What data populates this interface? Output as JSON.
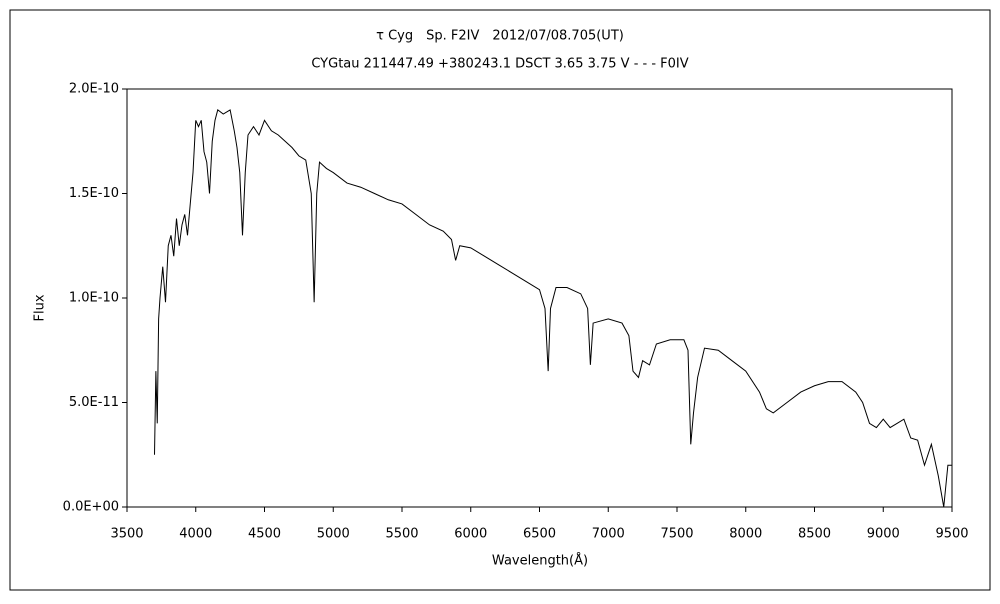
{
  "chart_data": {
    "type": "line",
    "title": "τ Cyg　Sp. F2IV　2012/07/08.705(UT)",
    "subtitle": "CYGtau 211447.49 +380243.1 DSCT 3.65 3.75 V - - - F0IV",
    "x_label": "Wavelength(Å)",
    "y_label": "Flux",
    "xlim": [
      3500,
      9500
    ],
    "xticks": [
      3500,
      4000,
      4500,
      5000,
      5500,
      6000,
      6500,
      7000,
      7500,
      8000,
      8500,
      9000,
      9500
    ],
    "ylim": [
      0,
      2e-10
    ],
    "yticks": [
      {
        "value": 0,
        "label": "0.0E+00"
      },
      {
        "value": 5e-11,
        "label": "5.0E-11"
      },
      {
        "value": 1e-10,
        "label": "1.0E-10"
      },
      {
        "value": 1.5e-10,
        "label": "1.5E-10"
      },
      {
        "value": 2e-10,
        "label": "2.0E-10"
      }
    ],
    "grid": false,
    "series": [
      {
        "name": "Flux",
        "color": "#000000",
        "x": [
          3700,
          3710,
          3720,
          3730,
          3740,
          3760,
          3780,
          3800,
          3820,
          3840,
          3860,
          3880,
          3900,
          3920,
          3940,
          3960,
          3980,
          4000,
          4020,
          4040,
          4060,
          4080,
          4100,
          4120,
          4140,
          4160,
          4200,
          4250,
          4280,
          4300,
          4320,
          4340,
          4360,
          4380,
          4420,
          4460,
          4500,
          4550,
          4600,
          4650,
          4700,
          4750,
          4800,
          4840,
          4861,
          4880,
          4900,
          4950,
          5000,
          5100,
          5200,
          5300,
          5400,
          5500,
          5600,
          5700,
          5800,
          5860,
          5890,
          5920,
          6000,
          6100,
          6200,
          6300,
          6400,
          6500,
          6540,
          6563,
          6580,
          6620,
          6700,
          6800,
          6850,
          6870,
          6890,
          7000,
          7100,
          7150,
          7180,
          7220,
          7250,
          7300,
          7350,
          7450,
          7550,
          7580,
          7600,
          7620,
          7650,
          7700,
          7800,
          7900,
          8000,
          8100,
          8150,
          8200,
          8300,
          8400,
          8500,
          8600,
          8700,
          8800,
          8850,
          8900,
          8950,
          9000,
          9050,
          9100,
          9150,
          9200,
          9250,
          9300,
          9350,
          9400,
          9440,
          9470,
          9500
        ],
        "values": [
          2.5e-11,
          6.5e-11,
          4e-11,
          9e-11,
          1e-10,
          1.15e-10,
          9.8e-11,
          1.25e-10,
          1.3e-10,
          1.2e-10,
          1.38e-10,
          1.25e-10,
          1.35e-10,
          1.4e-10,
          1.3e-10,
          1.45e-10,
          1.6e-10,
          1.85e-10,
          1.82e-10,
          1.85e-10,
          1.7e-10,
          1.65e-10,
          1.5e-10,
          1.75e-10,
          1.85e-10,
          1.9e-10,
          1.88e-10,
          1.9e-10,
          1.8e-10,
          1.72e-10,
          1.6e-10,
          1.3e-10,
          1.6e-10,
          1.78e-10,
          1.82e-10,
          1.78e-10,
          1.85e-10,
          1.8e-10,
          1.78e-10,
          1.75e-10,
          1.72e-10,
          1.68e-10,
          1.66e-10,
          1.5e-10,
          9.8e-11,
          1.5e-10,
          1.65e-10,
          1.62e-10,
          1.6e-10,
          1.55e-10,
          1.53e-10,
          1.5e-10,
          1.47e-10,
          1.45e-10,
          1.4e-10,
          1.35e-10,
          1.32e-10,
          1.28e-10,
          1.18e-10,
          1.25e-10,
          1.24e-10,
          1.2e-10,
          1.16e-10,
          1.12e-10,
          1.08e-10,
          1.04e-10,
          9.5e-11,
          6.5e-11,
          9.5e-11,
          1.05e-10,
          1.05e-10,
          1.02e-10,
          9.5e-11,
          6.8e-11,
          8.8e-11,
          9e-11,
          8.8e-11,
          8.2e-11,
          6.5e-11,
          6.2e-11,
          7e-11,
          6.8e-11,
          7.8e-11,
          8e-11,
          8e-11,
          7.5e-11,
          3e-11,
          4.5e-11,
          6.2e-11,
          7.6e-11,
          7.5e-11,
          7e-11,
          6.5e-11,
          5.5e-11,
          4.7e-11,
          4.5e-11,
          5e-11,
          5.5e-11,
          5.8e-11,
          6e-11,
          6e-11,
          5.5e-11,
          5e-11,
          4e-11,
          3.8e-11,
          4.2e-11,
          3.8e-11,
          4e-11,
          4.2e-11,
          3.3e-11,
          3.2e-11,
          2e-11,
          3e-11,
          1.5e-11,
          0,
          2e-11,
          2e-11
        ]
      }
    ]
  }
}
